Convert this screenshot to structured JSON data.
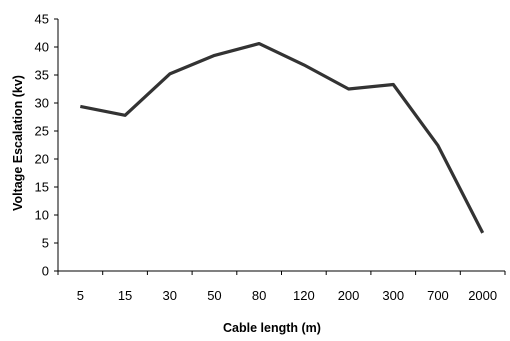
{
  "chart_data": {
    "type": "line",
    "title": "",
    "xlabel": "Cable length (m)",
    "ylabel": "Voltage Escalation (kv)",
    "categories": [
      "5",
      "15",
      "30",
      "50",
      "80",
      "120",
      "200",
      "300",
      "700",
      "2000"
    ],
    "series": [
      {
        "values": [
          29.4,
          27.8,
          35.2,
          38.5,
          40.6,
          36.8,
          32.5,
          33.3,
          22.4,
          6.8
        ]
      }
    ],
    "ylim": [
      0,
      45
    ],
    "yticks": [
      "0",
      "5",
      "10",
      "15",
      "20",
      "25",
      "30",
      "35",
      "40",
      "45"
    ],
    "grid": false,
    "legend": false,
    "colors": {
      "line": "#333333",
      "axis": "#000000"
    }
  }
}
